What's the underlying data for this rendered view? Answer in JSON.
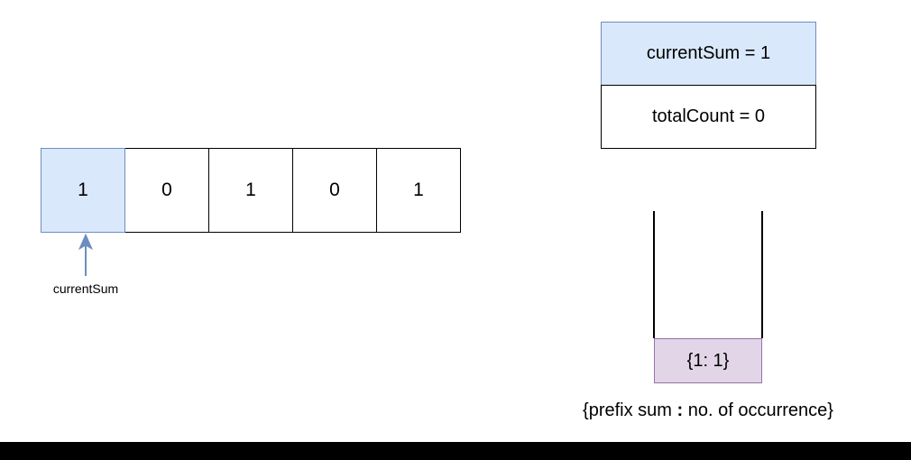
{
  "array": {
    "cells": [
      {
        "value": "1",
        "highlighted": true
      },
      {
        "value": "0",
        "highlighted": false
      },
      {
        "value": "1",
        "highlighted": false
      },
      {
        "value": "0",
        "highlighted": false
      },
      {
        "value": "1",
        "highlighted": false
      }
    ],
    "pointer_label": "currentSum"
  },
  "variables": {
    "current_sum": "currentSum = 1",
    "total_count": "totalCount = 0"
  },
  "hashmap": {
    "entries": [
      "{1: 1}"
    ],
    "caption_prefix": "{prefix sum ",
    "caption_separator": ":",
    "caption_suffix": " no. of occurrence}"
  },
  "colors": {
    "highlight_fill": "#dae8fc",
    "highlight_stroke": "#6c8ebf",
    "map_entry_fill": "#e1d5e7",
    "map_entry_stroke": "#9673a6"
  },
  "icons": {
    "pointer": "arrow-up-icon"
  }
}
